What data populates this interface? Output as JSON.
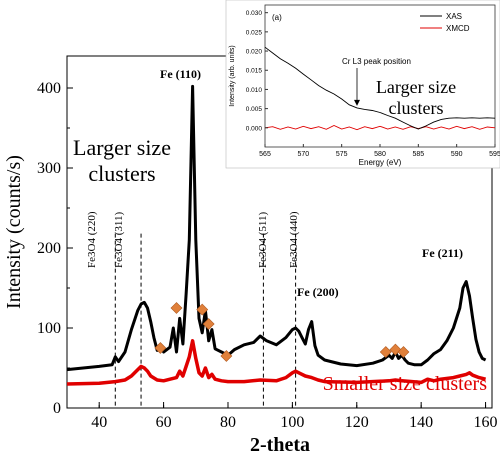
{
  "chart_data": [
    {
      "type": "line",
      "xlabel": "2-theta",
      "ylabel": "Intensity (counts/s)",
      "xlim": [
        30,
        162
      ],
      "ylim": [
        0,
        440
      ],
      "xticks": [
        40,
        60,
        80,
        100,
        120,
        140,
        160
      ],
      "yticks": [
        0,
        100,
        200,
        300,
        400
      ],
      "series": [
        {
          "color": "#000000",
          "x": [
            30,
            40,
            44,
            45,
            46,
            48,
            50,
            52,
            53,
            54,
            55,
            56,
            57,
            58,
            59,
            60,
            62,
            63,
            64,
            65,
            66,
            67,
            68,
            69,
            70,
            71,
            72,
            73,
            74,
            75,
            76,
            78,
            80,
            82,
            85,
            88,
            90,
            92,
            95,
            98,
            100,
            101,
            102,
            103,
            104,
            105,
            106,
            107,
            108,
            110,
            115,
            120,
            125,
            128,
            130,
            131,
            132,
            133,
            134,
            135,
            136,
            138,
            140,
            142,
            144,
            146,
            148,
            150,
            152,
            153,
            154,
            155,
            156,
            157,
            158,
            159,
            160
          ],
          "y": [
            48,
            52,
            54,
            64,
            58,
            70,
            98,
            122,
            130,
            132,
            125,
            108,
            88,
            72,
            78,
            70,
            76,
            100,
            70,
            112,
            80,
            142,
            210,
            402,
            210,
            112,
            94,
            122,
            84,
            98,
            74,
            70,
            66,
            73,
            79,
            82,
            90,
            84,
            79,
            88,
            98,
            100,
            96,
            88,
            80,
            98,
            108,
            78,
            66,
            60,
            55,
            53,
            56,
            60,
            66,
            62,
            70,
            62,
            66,
            60,
            56,
            54,
            54,
            60,
            68,
            73,
            84,
            100,
            125,
            150,
            158,
            140,
            112,
            86,
            70,
            62,
            60
          ]
        },
        {
          "color": "#e00000",
          "x": [
            30,
            40,
            45,
            48,
            50,
            52,
            53,
            54,
            55,
            56,
            58,
            60,
            62,
            64,
            65,
            66,
            67,
            68,
            69,
            70,
            71,
            72,
            73,
            74,
            75,
            76,
            78,
            80,
            85,
            90,
            95,
            98,
            100,
            101,
            102,
            104,
            106,
            108,
            110,
            120,
            130,
            132,
            134,
            140,
            142,
            144,
            146,
            150,
            152,
            154,
            155,
            156,
            158,
            160
          ],
          "y": [
            30,
            31,
            33,
            35,
            40,
            48,
            52,
            50,
            46,
            40,
            35,
            34,
            36,
            38,
            46,
            40,
            52,
            64,
            84,
            62,
            44,
            40,
            50,
            38,
            42,
            36,
            34,
            33,
            33,
            35,
            34,
            38,
            44,
            46,
            44,
            40,
            38,
            35,
            33,
            32,
            34,
            35,
            34,
            32,
            36,
            34,
            36,
            38,
            40,
            42,
            44,
            41,
            38,
            36
          ]
        }
      ],
      "vlines": [
        45,
        53,
        91,
        101
      ],
      "diamonds": [
        {
          "x": 59,
          "y": 75
        },
        {
          "x": 64,
          "y": 125
        },
        {
          "x": 72,
          "y": 123
        },
        {
          "x": 74,
          "y": 105
        },
        {
          "x": 79.5,
          "y": 65
        },
        {
          "x": 129,
          "y": 70
        },
        {
          "x": 132,
          "y": 73
        },
        {
          "x": 134.5,
          "y": 70
        }
      ],
      "annotations": {
        "fe3o4_220": "Fe3O4 (220)",
        "fe3o4_311": "Fe3O4 (311)",
        "fe3o4_511": "Fe3O4 (511)",
        "fe3o4_440": "Fe3O4 (440)",
        "fe110": "Fe (110)",
        "fe200": "Fe (200)",
        "fe211": "Fe (211)",
        "larger_line1": "Larger size",
        "larger_line2": "clusters",
        "smaller": "Smaller size clusters"
      }
    },
    {
      "type": "line",
      "panel": "(a)",
      "xlabel": "Energy (eV)",
      "ylabel": "Intensity (arb. units)",
      "xlim": [
        565,
        595
      ],
      "ylim": [
        -0.005,
        0.032
      ],
      "xticks": [
        565,
        570,
        575,
        580,
        585,
        590,
        595
      ],
      "yticks": [
        0.0,
        0.005,
        0.01,
        0.015,
        0.02,
        0.025,
        0.03
      ],
      "legend_position": "top-right",
      "series": [
        {
          "name": "XAS",
          "color": "#000000",
          "x": [
            565,
            566,
            567,
            568,
            569,
            570,
            571,
            572,
            573,
            574,
            575,
            576,
            577,
            578,
            579,
            580,
            581,
            582,
            583,
            584,
            585,
            586,
            587,
            588,
            589,
            590,
            591,
            592,
            593,
            594,
            595
          ],
          "y": [
            0.021,
            0.0195,
            0.018,
            0.0168,
            0.0155,
            0.014,
            0.0125,
            0.011,
            0.0098,
            0.0088,
            0.0075,
            0.006,
            0.0052,
            0.0048,
            0.0045,
            0.004,
            0.0032,
            0.0025,
            0.0015,
            0.0005,
            -0.0003,
            0.0005,
            0.0015,
            0.0022,
            0.0025,
            0.0026,
            0.0025,
            0.0026,
            0.0025,
            0.0026,
            0.0025
          ]
        },
        {
          "name": "XMCD",
          "color": "#e00000",
          "x": [
            565,
            566,
            567,
            568,
            569,
            570,
            571,
            572,
            573,
            574,
            575,
            576,
            577,
            578,
            579,
            580,
            581,
            582,
            583,
            584,
            585,
            586,
            587,
            588,
            589,
            590,
            591,
            592,
            593,
            594,
            595
          ],
          "y": [
            0.0,
            0.0003,
            -0.0004,
            0.0002,
            -0.0003,
            0.0004,
            -0.0002,
            0.0003,
            -0.0004,
            0.0006,
            -0.0003,
            0.0002,
            -0.0005,
            0.0003,
            -0.0002,
            0.0004,
            -0.0003,
            0.0002,
            -0.0004,
            0.0003,
            -0.0002,
            0.0003,
            -0.0003,
            0.0002,
            -0.0003,
            0.0004,
            -0.0002,
            0.0003,
            -0.0004,
            0.0002,
            0.0
          ]
        }
      ],
      "annotations": {
        "cr_label": "Cr L3 peak position",
        "cr_x": 577,
        "larger_line1": "Larger size",
        "larger_line2": "clusters"
      }
    }
  ]
}
